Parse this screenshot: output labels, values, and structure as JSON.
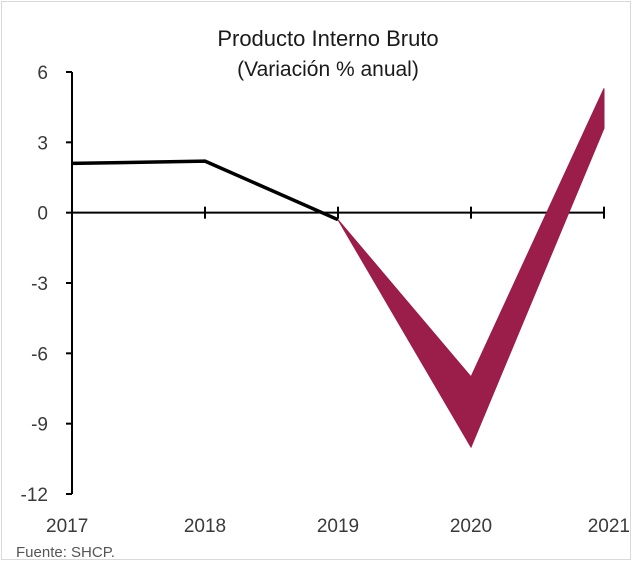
{
  "chart_data": {
    "type": "line",
    "title": "Producto Interno Bruto",
    "subtitle": "(Variación % anual)",
    "categories": [
      "2017",
      "2018",
      "2019",
      "2020",
      "2021"
    ],
    "ylim": [
      -12,
      6
    ],
    "yticks": [
      "6",
      "3",
      "0",
      "-3",
      "-6",
      "-9",
      "-12"
    ],
    "ytick_values": [
      6,
      3,
      0,
      -3,
      -6,
      -9,
      -12
    ],
    "series": [
      {
        "role": "observed",
        "x": [
          "2017",
          "2018",
          "2019"
        ],
        "values": [
          2.1,
          2.2,
          -0.3
        ],
        "color": "#000000"
      },
      {
        "role": "range",
        "x": [
          "2019",
          "2020",
          "2021"
        ],
        "upper": [
          -0.3,
          -7.0,
          5.3
        ],
        "lower": [
          -0.3,
          -10.0,
          3.6
        ],
        "color": "#9b1d4a"
      }
    ],
    "grid": false,
    "legend": "none"
  },
  "source": "Fuente: SHCP."
}
